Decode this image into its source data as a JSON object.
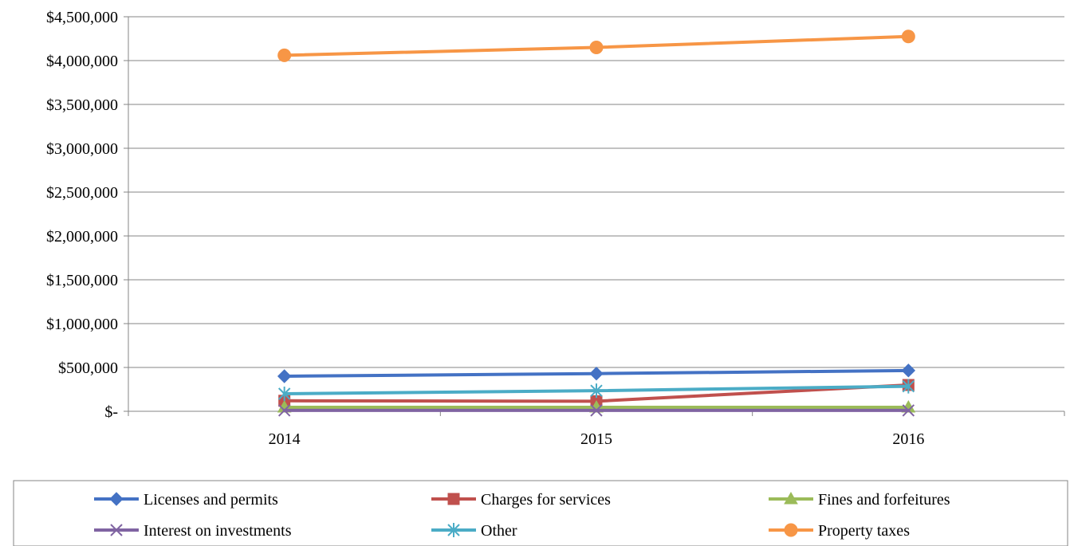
{
  "chart_data": {
    "type": "line",
    "title": "",
    "xlabel": "",
    "ylabel": "",
    "categories": [
      "2014",
      "2015",
      "2016"
    ],
    "y_ticks": [
      "$-",
      "$500,000",
      "$1,000,000",
      "$1,500,000",
      "$2,000,000",
      "$2,500,000",
      "$3,000,000",
      "$3,500,000",
      "$4,000,000",
      "$4,500,000"
    ],
    "ylim": [
      0,
      4500000
    ],
    "y_major_unit": 500000,
    "grid": "horizontal",
    "legend_position": "bottom",
    "series": [
      {
        "name": "Licenses and permits",
        "color": "#4472C4",
        "marker": "diamond",
        "values": [
          400000,
          430000,
          465000
        ]
      },
      {
        "name": "Charges for services",
        "color": "#C0504D",
        "marker": "square",
        "values": [
          120000,
          115000,
          300000
        ]
      },
      {
        "name": "Fines and forfeitures",
        "color": "#9BBB59",
        "marker": "triangle",
        "values": [
          45000,
          45000,
          45000
        ]
      },
      {
        "name": "Interest on investments",
        "color": "#8064A2",
        "marker": "x",
        "values": [
          10000,
          10000,
          10000
        ]
      },
      {
        "name": "Other",
        "color": "#4BACC6",
        "marker": "asterisk",
        "values": [
          200000,
          235000,
          285000
        ]
      },
      {
        "name": "Property taxes",
        "color": "#F79646",
        "marker": "circle",
        "values": [
          4060000,
          4150000,
          4275000
        ]
      }
    ]
  }
}
